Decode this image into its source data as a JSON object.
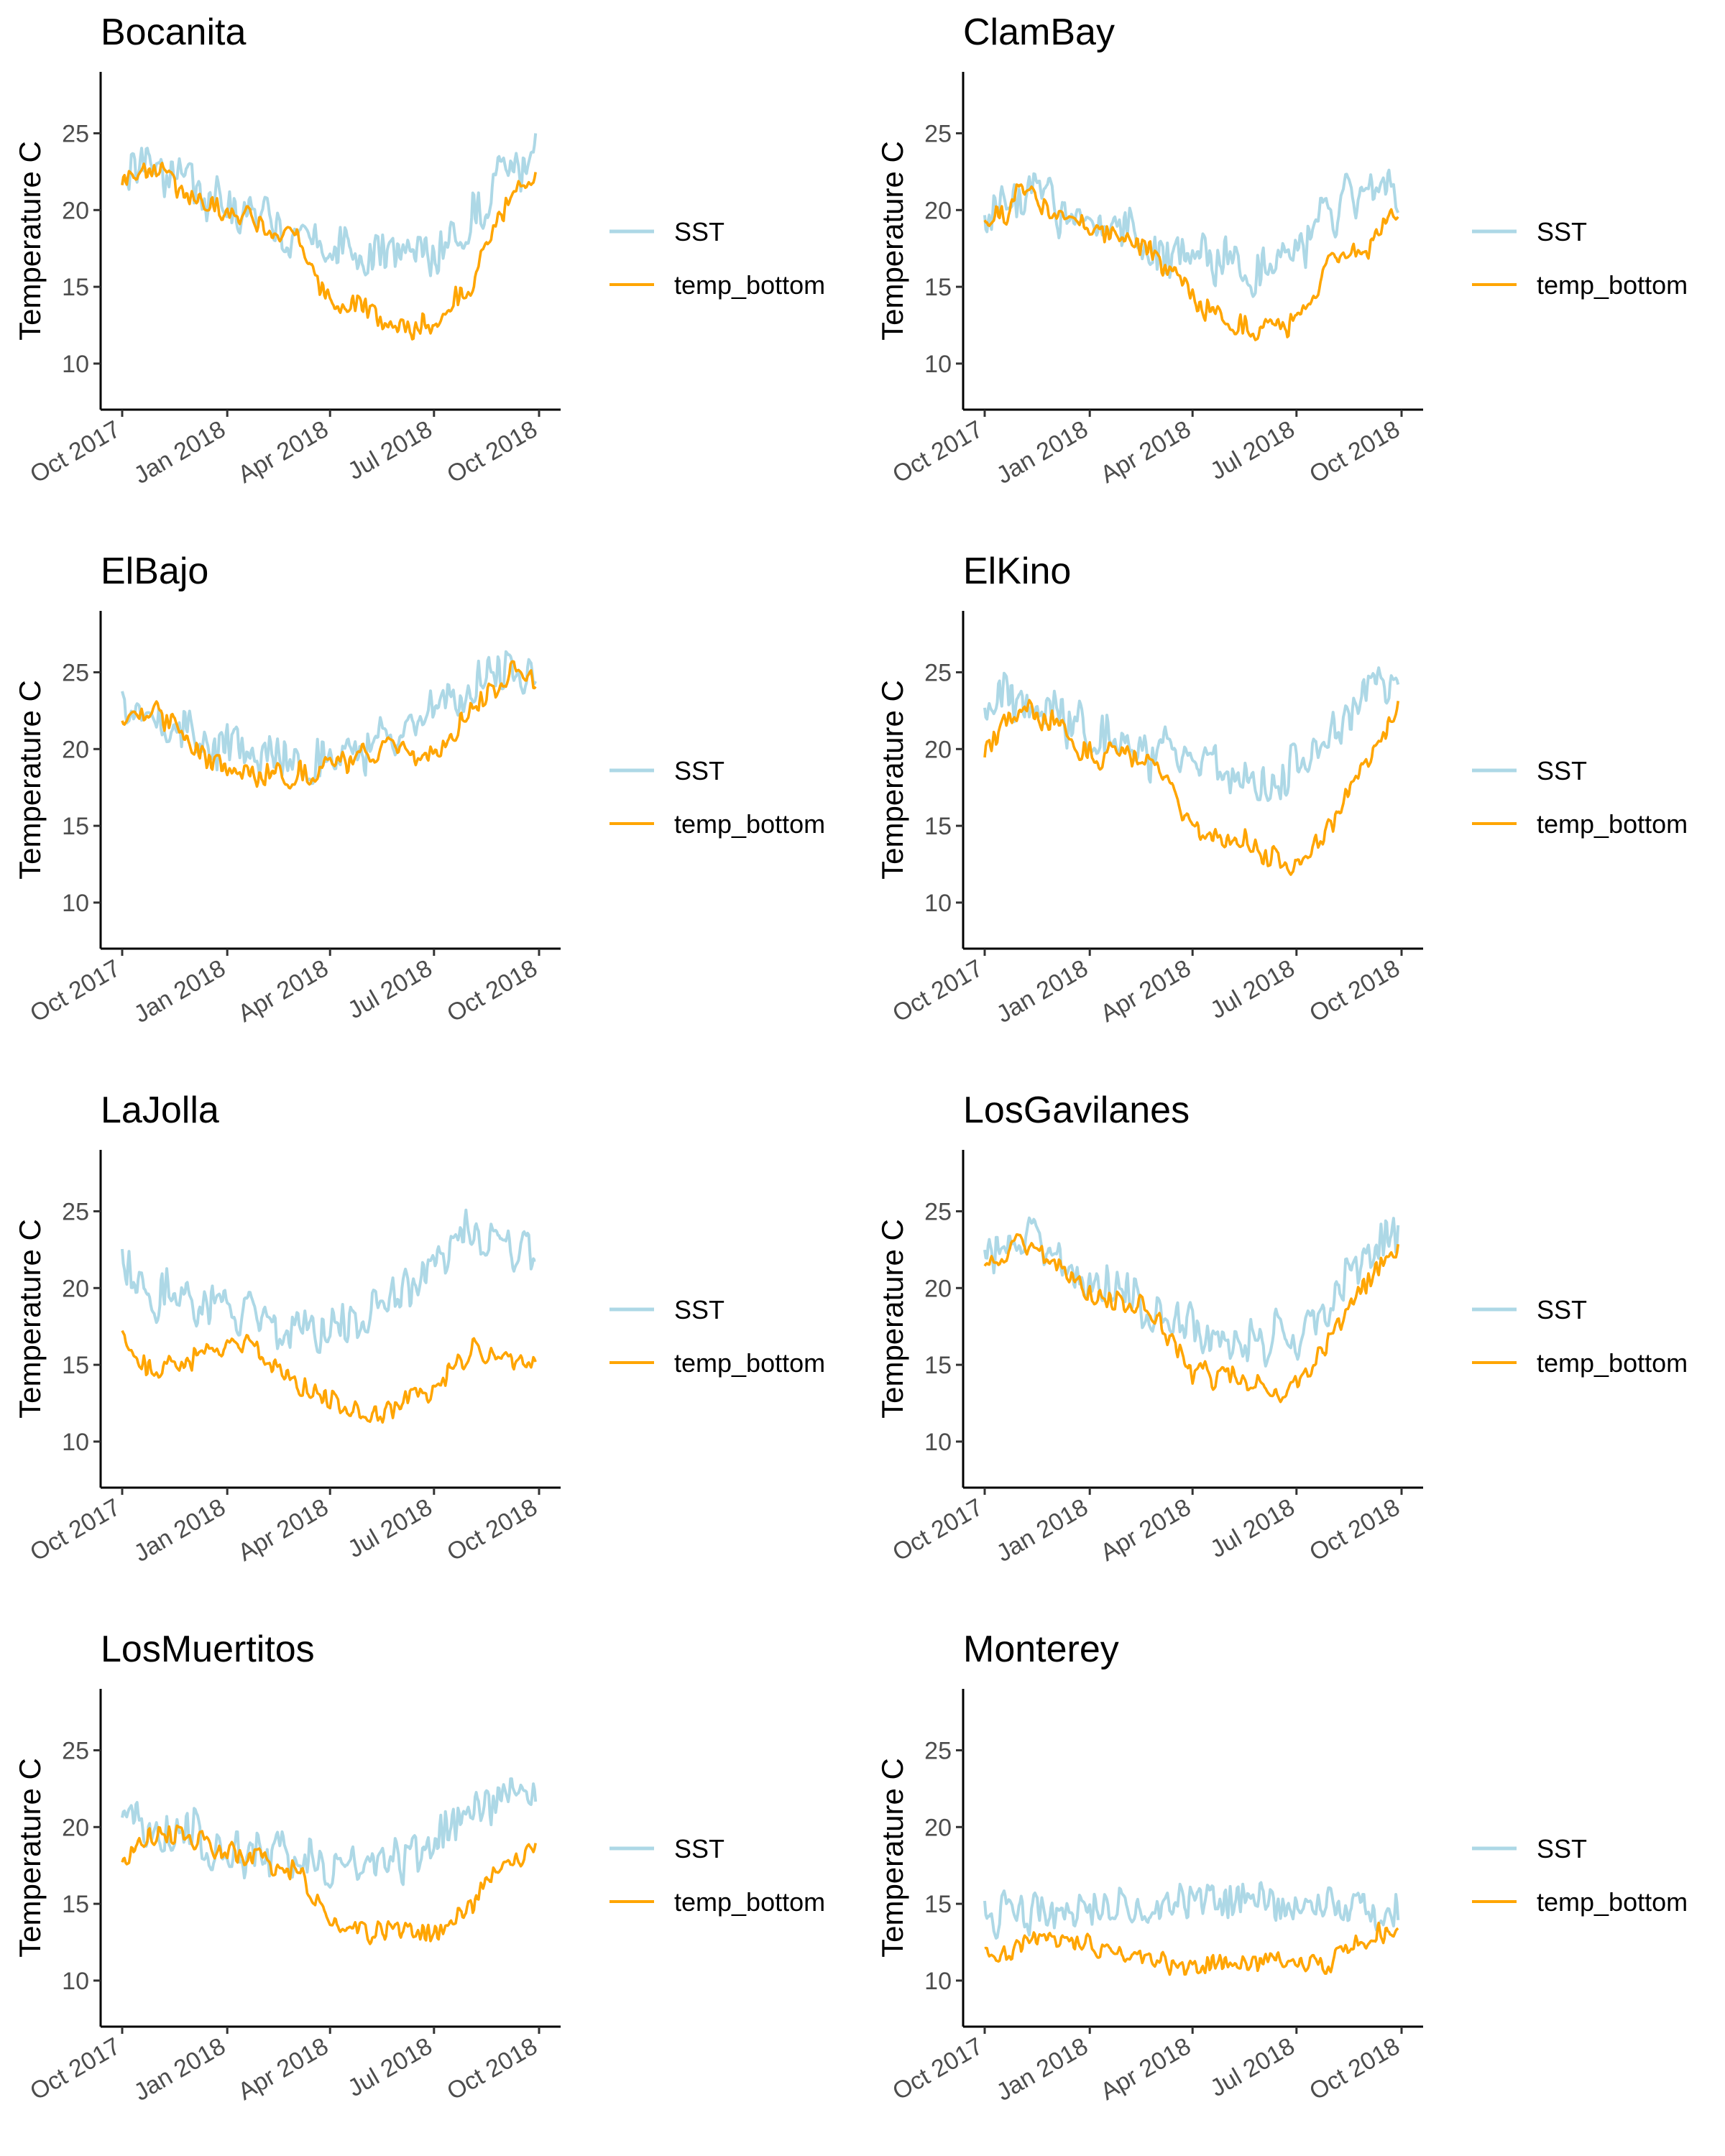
{
  "colors": {
    "SST": "#ADD8E6",
    "temp_bottom": "#FFA500",
    "axis": "#000000",
    "tick_text": "#4d4d4d"
  },
  "x_tick_labels": [
    "Oct 2017",
    "Jan 2018",
    "Apr 2018",
    "Jul 2018",
    "Oct 2018"
  ],
  "y_tick_labels": [
    "10",
    "15",
    "20",
    "25"
  ],
  "chart_data": [
    {
      "type": "line",
      "title": "Bocanita",
      "xlabel": "",
      "ylabel": "Temperature C",
      "x_dates": [
        "2017-10-01",
        "2017-11-01",
        "2017-12-01",
        "2018-01-01",
        "2018-02-01",
        "2018-03-01",
        "2018-04-01",
        "2018-05-01",
        "2018-06-01",
        "2018-07-01",
        "2018-08-01",
        "2018-09-01",
        "2018-09-28"
      ],
      "xlim": [
        "2017-10-01",
        "2018-10-01"
      ],
      "ylim": [
        7,
        29
      ],
      "grid": false,
      "legend_position": "right",
      "series": [
        {
          "name": "SST",
          "color": "#ADD8E6",
          "values": [
            22.0,
            22.3,
            21.5,
            20.0,
            19.4,
            18.6,
            17.3,
            17.0,
            16.8,
            17.5,
            19.3,
            22.5,
            23.5
          ]
        },
        {
          "name": "temp_bottom",
          "color": "#FFA500",
          "values": [
            21.4,
            22.6,
            20.8,
            19.8,
            18.8,
            18.5,
            13.8,
            13.7,
            12.2,
            12.5,
            15.2,
            20.3,
            22.5
          ]
        }
      ]
    },
    {
      "type": "line",
      "title": "ClamBay",
      "xlabel": "",
      "ylabel": "Temperature C",
      "x_dates": [
        "2017-10-01",
        "2017-11-01",
        "2017-12-01",
        "2018-01-01",
        "2018-02-01",
        "2018-03-01",
        "2018-04-01",
        "2018-05-01",
        "2018-06-01",
        "2018-07-01",
        "2018-08-01",
        "2018-09-01",
        "2018-09-28"
      ],
      "xlim": [
        "2017-10-01",
        "2018-10-01"
      ],
      "ylim": [
        7,
        29
      ],
      "grid": false,
      "legend_position": "right",
      "series": [
        {
          "name": "SST",
          "color": "#ADD8E6",
          "values": [
            19.8,
            21.0,
            20.2,
            19.3,
            18.6,
            17.4,
            17.0,
            16.4,
            16.5,
            17.7,
            19.8,
            21.0,
            21.8
          ]
        },
        {
          "name": "temp_bottom",
          "color": "#FFA500",
          "values": [
            18.6,
            21.0,
            20.0,
            18.8,
            18.6,
            16.8,
            14.3,
            12.9,
            12.4,
            12.6,
            16.5,
            17.6,
            20.0
          ]
        }
      ]
    },
    {
      "type": "line",
      "title": "ElBajo",
      "xlabel": "",
      "ylabel": "Temperature C",
      "x_dates": [
        "2017-10-01",
        "2017-11-01",
        "2017-12-01",
        "2018-01-01",
        "2018-02-01",
        "2018-03-01",
        "2018-04-01",
        "2018-05-01",
        "2018-06-01",
        "2018-07-01",
        "2018-08-01",
        "2018-09-01",
        "2018-09-28"
      ],
      "xlim": [
        "2017-10-01",
        "2018-10-01"
      ],
      "ylim": [
        7,
        29
      ],
      "grid": false,
      "legend_position": "right",
      "series": [
        {
          "name": "SST",
          "color": "#ADD8E6",
          "values": [
            22.8,
            22.2,
            21.2,
            19.8,
            19.5,
            19.5,
            19.7,
            20.0,
            20.6,
            22.2,
            24.0,
            25.3,
            24.8
          ]
        },
        {
          "name": "temp_bottom",
          "color": "#FFA500",
          "values": [
            22.2,
            22.6,
            20.3,
            18.5,
            18.4,
            18.3,
            19.0,
            19.6,
            19.7,
            19.4,
            22.5,
            25.0,
            24.6
          ]
        }
      ]
    },
    {
      "type": "line",
      "title": "ElKino",
      "xlabel": "",
      "ylabel": "Temperature C",
      "x_dates": [
        "2017-10-01",
        "2017-11-01",
        "2017-12-01",
        "2018-01-01",
        "2018-02-01",
        "2018-03-01",
        "2018-04-01",
        "2018-05-01",
        "2018-06-01",
        "2018-07-01",
        "2018-08-01",
        "2018-09-01",
        "2018-09-28"
      ],
      "xlim": [
        "2017-10-01",
        "2018-10-01"
      ],
      "ylim": [
        7,
        29
      ],
      "grid": false,
      "legend_position": "right",
      "series": [
        {
          "name": "SST",
          "color": "#ADD8E6",
          "values": [
            23.8,
            23.0,
            22.2,
            21.5,
            20.5,
            19.5,
            18.8,
            18.2,
            18.2,
            18.8,
            21.0,
            23.4,
            24.0
          ]
        },
        {
          "name": "temp_bottom",
          "color": "#FFA500",
          "values": [
            20.0,
            22.5,
            21.8,
            19.8,
            19.5,
            18.8,
            14.5,
            14.6,
            13.2,
            12.3,
            14.8,
            19.5,
            22.4
          ]
        }
      ]
    },
    {
      "type": "line",
      "title": "LaJolla",
      "xlabel": "",
      "ylabel": "Temperature C",
      "x_dates": [
        "2017-10-01",
        "2017-11-01",
        "2017-12-01",
        "2018-01-01",
        "2018-02-01",
        "2018-03-01",
        "2018-04-01",
        "2018-05-01",
        "2018-06-01",
        "2018-07-01",
        "2018-08-01",
        "2018-09-01",
        "2018-09-28"
      ],
      "xlim": [
        "2017-10-01",
        "2018-10-01"
      ],
      "ylim": [
        7,
        29
      ],
      "grid": false,
      "legend_position": "right",
      "series": [
        {
          "name": "SST",
          "color": "#ADD8E6",
          "values": [
            21.5,
            19.8,
            19.0,
            18.2,
            17.8,
            17.5,
            17.5,
            17.8,
            19.5,
            21.6,
            23.8,
            23.4,
            22.2
          ]
        },
        {
          "name": "temp_bottom",
          "color": "#FFA500",
          "values": [
            16.5,
            14.6,
            15.2,
            16.5,
            15.5,
            14.0,
            12.4,
            11.8,
            12.3,
            13.8,
            15.8,
            15.6,
            15.0
          ]
        }
      ]
    },
    {
      "type": "line",
      "title": "LosGavilanes",
      "xlabel": "",
      "ylabel": "Temperature C",
      "x_dates": [
        "2017-10-01",
        "2017-11-01",
        "2017-12-01",
        "2018-01-01",
        "2018-02-01",
        "2018-03-01",
        "2018-04-01",
        "2018-05-01",
        "2018-06-01",
        "2018-07-01",
        "2018-08-01",
        "2018-09-01",
        "2018-09-28"
      ],
      "xlim": [
        "2017-10-01",
        "2018-10-01"
      ],
      "ylim": [
        7,
        29
      ],
      "grid": false,
      "legend_position": "right",
      "series": [
        {
          "name": "SST",
          "color": "#ADD8E6",
          "values": [
            22.3,
            23.2,
            21.6,
            20.2,
            19.5,
            18.5,
            17.5,
            16.8,
            16.4,
            17.0,
            19.5,
            22.0,
            23.5
          ]
        },
        {
          "name": "temp_bottom",
          "color": "#FFA500",
          "values": [
            21.0,
            22.8,
            21.4,
            19.8,
            19.0,
            18.5,
            14.5,
            14.4,
            13.5,
            13.6,
            16.8,
            20.5,
            22.0
          ]
        }
      ]
    },
    {
      "type": "line",
      "title": "LosMuertitos",
      "xlabel": "",
      "ylabel": "Temperature C",
      "x_dates": [
        "2017-10-01",
        "2017-11-01",
        "2017-12-01",
        "2018-01-01",
        "2018-02-01",
        "2018-03-01",
        "2018-04-01",
        "2018-05-01",
        "2018-06-01",
        "2018-07-01",
        "2018-08-01",
        "2018-09-01",
        "2018-09-28"
      ],
      "xlim": [
        "2017-10-01",
        "2018-10-01"
      ],
      "ylim": [
        7,
        29
      ],
      "grid": false,
      "legend_position": "right",
      "series": [
        {
          "name": "SST",
          "color": "#ADD8E6",
          "values": [
            20.8,
            20.0,
            19.6,
            18.8,
            18.3,
            18.0,
            17.6,
            17.8,
            17.8,
            18.5,
            20.0,
            21.5,
            21.0
          ]
        },
        {
          "name": "temp_bottom",
          "color": "#FFA500",
          "values": [
            17.8,
            20.0,
            19.6,
            18.3,
            18.0,
            17.3,
            13.8,
            13.2,
            13.0,
            12.5,
            14.5,
            17.5,
            18.5
          ]
        }
      ]
    },
    {
      "type": "line",
      "title": "Monterey",
      "xlabel": "",
      "ylabel": "Temperature C",
      "x_dates": [
        "2017-10-01",
        "2017-11-01",
        "2017-12-01",
        "2018-01-01",
        "2018-02-01",
        "2018-03-01",
        "2018-04-01",
        "2018-05-01",
        "2018-06-01",
        "2018-07-01",
        "2018-08-01",
        "2018-09-01",
        "2018-09-28"
      ],
      "xlim": [
        "2017-10-01",
        "2018-10-01"
      ],
      "ylim": [
        7,
        29
      ],
      "grid": false,
      "legend_position": "right",
      "series": [
        {
          "name": "SST",
          "color": "#ADD8E6",
          "values": [
            14.5,
            14.8,
            14.6,
            14.7,
            14.5,
            14.5,
            14.6,
            14.6,
            14.8,
            14.5,
            14.6,
            14.5,
            14.6
          ]
        },
        {
          "name": "temp_bottom",
          "color": "#FFA500",
          "values": [
            11.5,
            12.5,
            12.8,
            12.2,
            11.5,
            11.0,
            10.5,
            11.0,
            11.3,
            10.8,
            11.2,
            13.0,
            13.5
          ]
        }
      ]
    }
  ]
}
